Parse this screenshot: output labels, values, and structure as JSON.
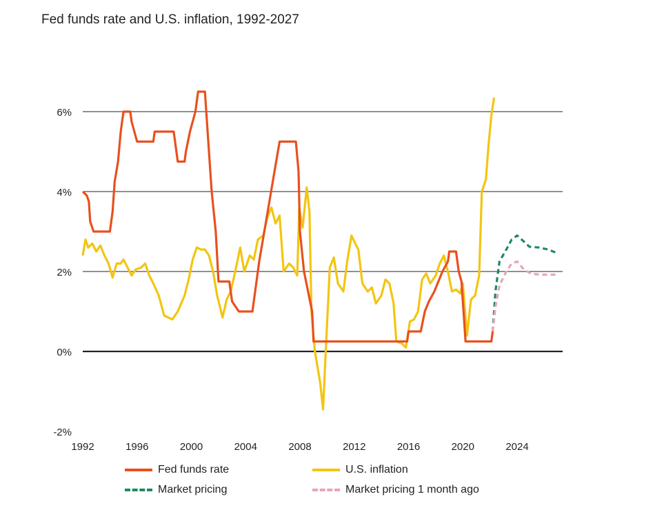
{
  "chart_data": {
    "type": "line",
    "title": "Fed funds rate and U.S. inflation, 1992-2027",
    "xlabel": "",
    "ylabel": "",
    "xlim": [
      1992,
      2027.3
    ],
    "ylim": [
      -2,
      6.8
    ],
    "x_ticks": [
      {
        "value": 1992,
        "label": "1992"
      },
      {
        "value": 1996,
        "label": "1996"
      },
      {
        "value": 2000,
        "label": "2000"
      },
      {
        "value": 2004,
        "label": "2004"
      },
      {
        "value": 2008,
        "label": "2008"
      },
      {
        "value": 2012,
        "label": "2012"
      },
      {
        "value": 2016,
        "label": "2016"
      },
      {
        "value": 2020,
        "label": "2020"
      },
      {
        "value": 2024,
        "label": "2024"
      }
    ],
    "y_ticks": [
      {
        "value": -2,
        "label": "-2%"
      },
      {
        "value": 0,
        "label": "0%"
      },
      {
        "value": 2,
        "label": "2%"
      },
      {
        "value": 4,
        "label": "4%"
      },
      {
        "value": 6,
        "label": "6%"
      }
    ],
    "grid": true,
    "legend_position": "bottom",
    "series": [
      {
        "name": "Fed funds rate",
        "color": "#e8501e",
        "style": "solid",
        "points": [
          [
            1992.0,
            4.0
          ],
          [
            1992.3,
            3.9
          ],
          [
            1992.45,
            3.75
          ],
          [
            1992.55,
            3.25
          ],
          [
            1992.8,
            3.0
          ],
          [
            1994.0,
            3.0
          ],
          [
            1994.2,
            3.5
          ],
          [
            1994.35,
            4.25
          ],
          [
            1994.6,
            4.75
          ],
          [
            1994.8,
            5.5
          ],
          [
            1995.0,
            6.0
          ],
          [
            1995.5,
            6.0
          ],
          [
            1995.6,
            5.75
          ],
          [
            1996.0,
            5.25
          ],
          [
            1997.2,
            5.25
          ],
          [
            1997.3,
            5.5
          ],
          [
            1998.7,
            5.5
          ],
          [
            1998.8,
            5.25
          ],
          [
            1999.0,
            4.75
          ],
          [
            1999.5,
            4.75
          ],
          [
            1999.6,
            5.0
          ],
          [
            1999.9,
            5.5
          ],
          [
            2000.3,
            6.0
          ],
          [
            2000.5,
            6.5
          ],
          [
            2001.0,
            6.5
          ],
          [
            2001.2,
            5.5
          ],
          [
            2001.5,
            4.0
          ],
          [
            2001.8,
            3.0
          ],
          [
            2002.0,
            1.75
          ],
          [
            2002.8,
            1.75
          ],
          [
            2003.0,
            1.25
          ],
          [
            2003.5,
            1.0
          ],
          [
            2004.5,
            1.0
          ],
          [
            2004.8,
            1.75
          ],
          [
            2005.0,
            2.25
          ],
          [
            2005.5,
            3.25
          ],
          [
            2006.0,
            4.25
          ],
          [
            2006.5,
            5.25
          ],
          [
            2007.7,
            5.25
          ],
          [
            2007.9,
            4.5
          ],
          [
            2008.0,
            3.0
          ],
          [
            2008.3,
            2.0
          ],
          [
            2008.9,
            1.0
          ],
          [
            2009.0,
            0.25
          ],
          [
            2015.9,
            0.25
          ],
          [
            2016.0,
            0.5
          ],
          [
            2016.9,
            0.5
          ],
          [
            2017.2,
            1.0
          ],
          [
            2017.5,
            1.25
          ],
          [
            2017.9,
            1.5
          ],
          [
            2018.2,
            1.75
          ],
          [
            2018.5,
            2.0
          ],
          [
            2018.9,
            2.25
          ],
          [
            2019.0,
            2.5
          ],
          [
            2019.5,
            2.5
          ],
          [
            2019.7,
            2.0
          ],
          [
            2019.9,
            1.75
          ],
          [
            2020.2,
            0.25
          ],
          [
            2022.1,
            0.25
          ],
          [
            2022.2,
            0.5
          ]
        ]
      },
      {
        "name": "U.S. inflation",
        "color": "#f3c511",
        "style": "solid",
        "points": [
          [
            1992.0,
            2.4
          ],
          [
            1992.2,
            2.8
          ],
          [
            1992.4,
            2.6
          ],
          [
            1992.7,
            2.7
          ],
          [
            1993.0,
            2.5
          ],
          [
            1993.3,
            2.65
          ],
          [
            1993.6,
            2.4
          ],
          [
            1993.9,
            2.2
          ],
          [
            1994.2,
            1.85
          ],
          [
            1994.5,
            2.2
          ],
          [
            1994.8,
            2.2
          ],
          [
            1995.0,
            2.3
          ],
          [
            1995.3,
            2.1
          ],
          [
            1995.6,
            1.9
          ],
          [
            1995.9,
            2.05
          ],
          [
            1996.3,
            2.1
          ],
          [
            1996.6,
            2.2
          ],
          [
            1996.9,
            1.9
          ],
          [
            1997.2,
            1.7
          ],
          [
            1997.6,
            1.4
          ],
          [
            1998.0,
            0.9
          ],
          [
            1998.3,
            0.85
          ],
          [
            1998.6,
            0.8
          ],
          [
            1999.0,
            1.0
          ],
          [
            1999.5,
            1.4
          ],
          [
            1999.8,
            1.8
          ],
          [
            2000.1,
            2.3
          ],
          [
            2000.4,
            2.6
          ],
          [
            2000.7,
            2.55
          ],
          [
            2001.0,
            2.55
          ],
          [
            2001.3,
            2.4
          ],
          [
            2001.6,
            2.0
          ],
          [
            2001.9,
            1.4
          ],
          [
            2002.3,
            0.85
          ],
          [
            2002.6,
            1.3
          ],
          [
            2002.9,
            1.5
          ],
          [
            2003.2,
            1.95
          ],
          [
            2003.6,
            2.6
          ],
          [
            2003.9,
            2.0
          ],
          [
            2004.3,
            2.4
          ],
          [
            2004.6,
            2.3
          ],
          [
            2004.9,
            2.8
          ],
          [
            2005.3,
            2.9
          ],
          [
            2005.6,
            3.35
          ],
          [
            2005.9,
            3.6
          ],
          [
            2006.2,
            3.2
          ],
          [
            2006.5,
            3.4
          ],
          [
            2006.8,
            2.0
          ],
          [
            2007.2,
            2.2
          ],
          [
            2007.5,
            2.1
          ],
          [
            2007.8,
            1.9
          ],
          [
            2007.95,
            3.6
          ],
          [
            2008.2,
            3.1
          ],
          [
            2008.5,
            4.1
          ],
          [
            2008.7,
            3.5
          ],
          [
            2008.85,
            1.0
          ],
          [
            2009.1,
            0.0
          ],
          [
            2009.5,
            -0.8
          ],
          [
            2009.7,
            -1.45
          ],
          [
            2009.9,
            0.0
          ],
          [
            2010.2,
            2.1
          ],
          [
            2010.5,
            2.35
          ],
          [
            2010.8,
            1.7
          ],
          [
            2011.2,
            1.5
          ],
          [
            2011.5,
            2.3
          ],
          [
            2011.8,
            2.9
          ],
          [
            2012.0,
            2.75
          ],
          [
            2012.3,
            2.55
          ],
          [
            2012.6,
            1.7
          ],
          [
            2013.0,
            1.5
          ],
          [
            2013.3,
            1.6
          ],
          [
            2013.6,
            1.2
          ],
          [
            2014.0,
            1.4
          ],
          [
            2014.3,
            1.8
          ],
          [
            2014.6,
            1.7
          ],
          [
            2014.9,
            1.2
          ],
          [
            2015.1,
            0.25
          ],
          [
            2015.5,
            0.2
          ],
          [
            2015.8,
            0.1
          ],
          [
            2016.1,
            0.75
          ],
          [
            2016.4,
            0.8
          ],
          [
            2016.7,
            1.0
          ],
          [
            2017.0,
            1.8
          ],
          [
            2017.3,
            1.95
          ],
          [
            2017.6,
            1.7
          ],
          [
            2018.0,
            1.9
          ],
          [
            2018.3,
            2.2
          ],
          [
            2018.6,
            2.4
          ],
          [
            2018.9,
            2.0
          ],
          [
            2019.2,
            1.5
          ],
          [
            2019.5,
            1.55
          ],
          [
            2019.8,
            1.45
          ],
          [
            2020.0,
            1.7
          ],
          [
            2020.3,
            0.4
          ],
          [
            2020.6,
            1.3
          ],
          [
            2020.9,
            1.4
          ],
          [
            2021.2,
            1.9
          ],
          [
            2021.4,
            4.0
          ],
          [
            2021.7,
            4.3
          ],
          [
            2021.9,
            5.2
          ],
          [
            2022.1,
            5.9
          ],
          [
            2022.3,
            6.35
          ]
        ]
      },
      {
        "name": "Market pricing",
        "color": "#1f8a5c",
        "style": "dashed",
        "points": [
          [
            2022.2,
            0.5
          ],
          [
            2022.4,
            1.5
          ],
          [
            2022.7,
            2.25
          ],
          [
            2023.2,
            2.55
          ],
          [
            2023.6,
            2.8
          ],
          [
            2024.0,
            2.9
          ],
          [
            2024.5,
            2.75
          ],
          [
            2024.9,
            2.62
          ],
          [
            2025.6,
            2.6
          ],
          [
            2026.3,
            2.55
          ],
          [
            2027.0,
            2.45
          ]
        ]
      },
      {
        "name": "Market pricing 1 month ago",
        "color": "#e6a6b6",
        "style": "dashed",
        "points": [
          [
            2022.2,
            0.5
          ],
          [
            2022.4,
            1.1
          ],
          [
            2022.7,
            1.65
          ],
          [
            2023.2,
            2.0
          ],
          [
            2023.6,
            2.2
          ],
          [
            2024.0,
            2.25
          ],
          [
            2024.5,
            2.05
          ],
          [
            2025.0,
            1.95
          ],
          [
            2025.7,
            1.92
          ],
          [
            2027.0,
            1.92
          ]
        ]
      }
    ]
  }
}
